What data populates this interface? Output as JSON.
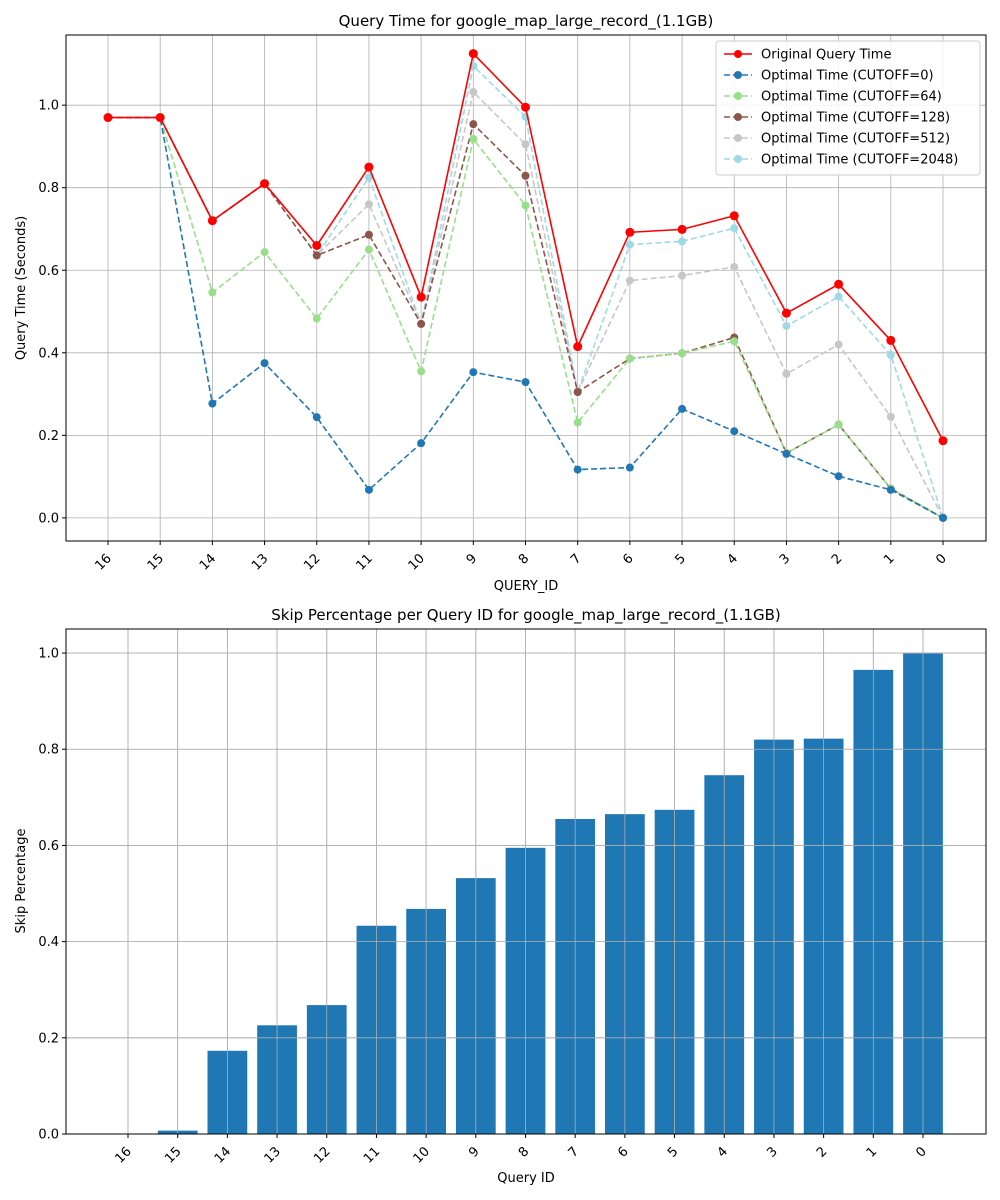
{
  "chart_data": [
    {
      "type": "line",
      "title": "Query Time for google_map_large_record_(1.1GB)",
      "xlabel": "QUERY_ID",
      "ylabel": "Query Time (Seconds)",
      "categories": [
        "16",
        "15",
        "14",
        "13",
        "12",
        "11",
        "10",
        "9",
        "8",
        "7",
        "6",
        "5",
        "4",
        "3",
        "2",
        "1",
        "0"
      ],
      "ylim": [
        -0.056,
        1.17
      ],
      "yticks": [
        0.0,
        0.2,
        0.4,
        0.6,
        0.8,
        1.0
      ],
      "ytick_labels": [
        "0.0",
        "0.2",
        "0.4",
        "0.6",
        "0.8",
        "1.0"
      ],
      "grid": true,
      "legend_position": "top-right",
      "series": [
        {
          "name": "Original Query Time",
          "color": "#ff0000",
          "style": "solid",
          "values": [
            0.97,
            0.97,
            0.72,
            0.81,
            0.66,
            0.85,
            0.535,
            1.125,
            0.995,
            0.415,
            0.692,
            0.699,
            0.732,
            0.496,
            0.566,
            0.43,
            0.187
          ]
        },
        {
          "name": "Optimal Time (CUTOFF=0)",
          "color": "#1f77b4",
          "style": "dashed",
          "values": [
            0.97,
            0.97,
            0.277,
            0.375,
            0.244,
            0.068,
            0.181,
            0.353,
            0.329,
            0.117,
            0.122,
            0.264,
            0.21,
            0.155,
            0.101,
            0.068,
            0.0
          ]
        },
        {
          "name": "Optimal Time (CUTOFF=64)",
          "color": "#98df8a",
          "style": "dashed",
          "values": [
            0.97,
            0.97,
            0.546,
            0.644,
            0.483,
            0.65,
            0.355,
            0.918,
            0.757,
            0.231,
            0.386,
            0.399,
            0.428,
            0.157,
            0.226,
            0.071,
            0.0
          ]
        },
        {
          "name": "Optimal Time (CUTOFF=128)",
          "color": "#8c564b",
          "style": "dashed",
          "values": [
            0.97,
            0.97,
            0.72,
            0.81,
            0.636,
            0.686,
            0.47,
            0.954,
            0.829,
            0.305,
            0.386,
            0.399,
            0.437,
            0.157,
            0.226,
            0.071,
            0.0
          ]
        },
        {
          "name": "Optimal Time (CUTOFF=512)",
          "color": "#c7c7c7",
          "style": "dashed",
          "values": [
            0.97,
            0.97,
            0.72,
            0.81,
            0.636,
            0.76,
            0.47,
            1.032,
            0.905,
            0.305,
            0.575,
            0.587,
            0.608,
            0.349,
            0.42,
            0.245,
            0.0
          ]
        },
        {
          "name": "Optimal Time (CUTOFF=2048)",
          "color": "#9edae5",
          "style": "dashed",
          "values": [
            0.97,
            0.97,
            0.72,
            0.81,
            0.636,
            0.825,
            0.47,
            1.095,
            0.972,
            0.305,
            0.662,
            0.67,
            0.702,
            0.465,
            0.536,
            0.395,
            0.0
          ]
        }
      ]
    },
    {
      "type": "bar",
      "title": "Skip Percentage per Query ID for google_map_large_record_(1.1GB)",
      "xlabel": "Query ID",
      "ylabel": "Skip Percentage",
      "categories": [
        "16",
        "15",
        "14",
        "13",
        "12",
        "11",
        "10",
        "9",
        "8",
        "7",
        "6",
        "5",
        "4",
        "3",
        "2",
        "1",
        "0"
      ],
      "values": [
        0.0,
        0.007,
        0.173,
        0.226,
        0.268,
        0.433,
        0.468,
        0.532,
        0.595,
        0.655,
        0.665,
        0.674,
        0.746,
        0.82,
        0.822,
        0.965,
        0.999
      ],
      "ylim": [
        0.0,
        1.05
      ],
      "yticks": [
        0.0,
        0.2,
        0.4,
        0.6,
        0.8,
        1.0
      ],
      "ytick_labels": [
        "0.0",
        "0.2",
        "0.4",
        "0.6",
        "0.8",
        "1.0"
      ],
      "grid": true,
      "color": "#1f77b4"
    }
  ]
}
